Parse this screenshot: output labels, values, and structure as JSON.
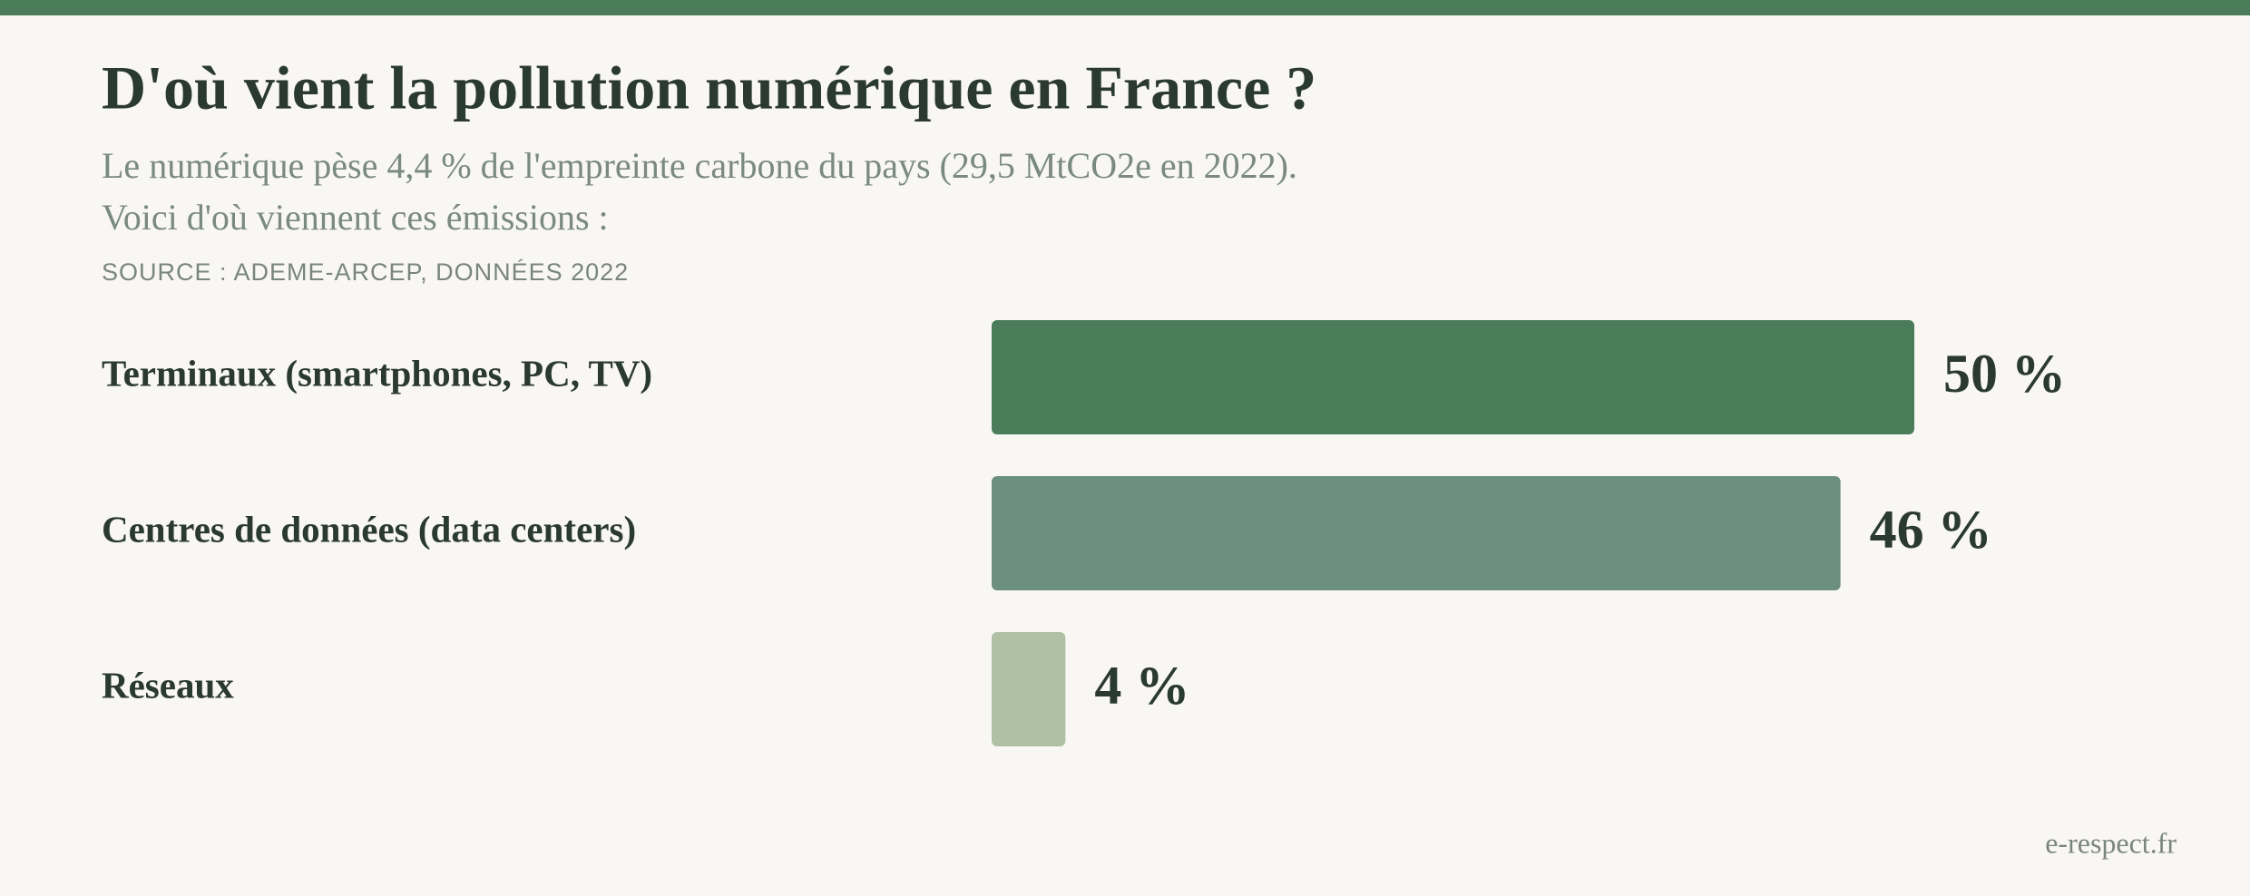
{
  "chart_data": {
    "type": "bar",
    "orientation": "horizontal",
    "title": "D'où vient la pollution numérique en France ?",
    "subtitle": [
      "Le numérique pèse 4,4 % de l'empreinte carbone du pays (29,5 MtCO2e en 2022).",
      "Voici d'où viennent ces émissions :"
    ],
    "source": "SOURCE : ADEME-ARCEP, DONNÉES 2022",
    "categories": [
      "Terminaux (smartphones, PC, TV)",
      "Centres de données (data centers)",
      "Réseaux"
    ],
    "values": [
      50,
      46,
      4
    ],
    "value_labels": [
      "50 %",
      "46 %",
      "4 %"
    ],
    "colors": [
      "#4a7c59",
      "#6b9080",
      "#afc0a5"
    ],
    "footer": "e-respect.fr"
  }
}
